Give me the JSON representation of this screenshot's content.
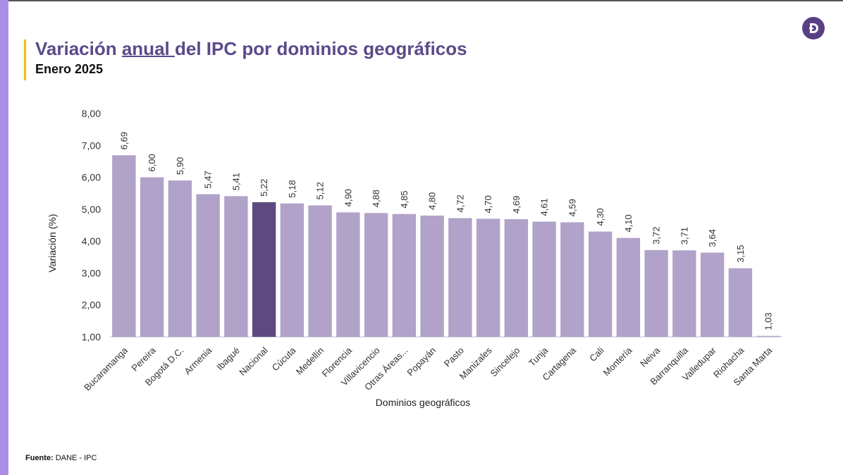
{
  "page": {
    "title_prefix": "Variación ",
    "title_underlined": "anual ",
    "title_suffix": "del IPC por dominios geográficos",
    "subtitle": "Enero 2025",
    "footer_label": "Fuente:",
    "footer_text": " DANE - IPC",
    "logo_icon": "dane-logo-icon"
  },
  "colors": {
    "stripe": "#a98ee3",
    "title": "#5b4a8a",
    "accent": "#f2c200",
    "bar": "#b1a2c9",
    "bar_highlight": "#5e4a7f",
    "logo": "#5b3f85"
  },
  "chart_data": {
    "type": "bar",
    "title": "Variación anual del IPC por dominios geográficos",
    "subtitle": "Enero 2025",
    "xlabel": "Dominios geográficos",
    "ylabel": "Variación (%)",
    "ylim": [
      1,
      8
    ],
    "yticks": [
      "1,00",
      "2,00",
      "3,00",
      "4,00",
      "5,00",
      "6,00",
      "7,00",
      "8,00"
    ],
    "grid": false,
    "highlight": "Nacional",
    "categories": [
      "Bucaramanga",
      "Pereira",
      "Bogotá D.C.",
      "Armenia",
      "Ibagué",
      "Nacional",
      "Cúcuta",
      "Medellín",
      "Florencia",
      "Villavicencio",
      "Otras Áreas...",
      "Popayán",
      "Pasto",
      "Manizales",
      "Sincelejo",
      "Tunja",
      "Cartagena",
      "Cali",
      "Montería",
      "Neiva",
      "Barranquilla",
      "Valledupar",
      "Riohacha",
      "Santa Marta"
    ],
    "values": [
      6.69,
      6.0,
      5.9,
      5.47,
      5.41,
      5.22,
      5.18,
      5.12,
      4.9,
      4.88,
      4.85,
      4.8,
      4.72,
      4.7,
      4.69,
      4.61,
      4.59,
      4.3,
      4.1,
      3.72,
      3.71,
      3.64,
      3.15,
      1.03
    ],
    "value_labels": [
      "6,69",
      "6,00",
      "5,90",
      "5,47",
      "5,41",
      "5,22",
      "5,18",
      "5,12",
      "4,90",
      "4,88",
      "4,85",
      "4,80",
      "4,72",
      "4,70",
      "4,69",
      "4,61",
      "4,59",
      "4,30",
      "4,10",
      "3,72",
      "3,71",
      "3,64",
      "3,15",
      "1,03"
    ]
  }
}
